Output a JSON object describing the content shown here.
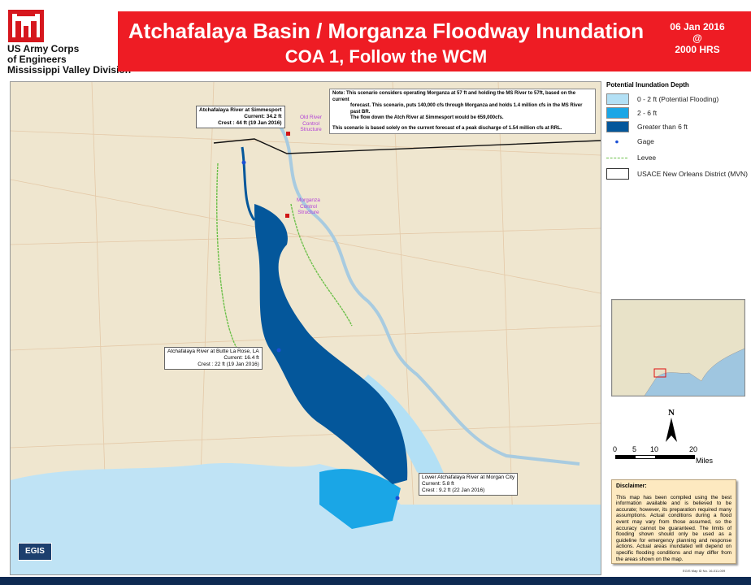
{
  "header": {
    "org_lines": [
      "US Army Corps",
      "of Engineers",
      "Mississippi Valley Division"
    ],
    "title": "Atchafalaya Basin / Morganza Floodway Inundation",
    "subtitle": "COA 1, Follow the WCM",
    "date": "06 Jan 2016",
    "at": "@",
    "time": "2000 HRS",
    "colors": {
      "banner": "#ee1c24",
      "logo": "#d6171e"
    }
  },
  "map": {
    "note_lines": [
      "Note: This scenario considers operating Morganza at 57 ft and holding the MS River to 57ft, based on the current",
      "forecast. This scenario, puts 140,000 cfs through Morganza and holds 1.4 million cfs in the MS River past BR.",
      "The flow down the Atch River at Simmesport would be 659,000cfs.",
      "This  scenario is based solely on the current forecast of a peak discharge of 1.54 million cfs at RRL."
    ],
    "gages": [
      {
        "name": "Atchafalaya River at Simmesport",
        "current": "Current: 34.2 ft",
        "crest": "Crest : 44 ft (19 Jan 2016)"
      },
      {
        "name": "Atchafalaya River at Butte La Rose, LA",
        "current": "Current: 16.4 ft",
        "crest": "Crest : 22 ft (19 Jan 2016)"
      },
      {
        "name": "Lower Atchafalaya River at Morgan City",
        "current": "Current: 5.8 ft",
        "crest": "Crest : 9.2 ft (22 Jan 2016)"
      }
    ],
    "structures": [
      {
        "lines": [
          "Old River",
          "Control",
          "Structure"
        ]
      },
      {
        "lines": [
          "Morganza",
          "Control",
          "Structure"
        ]
      }
    ],
    "logo_text": "EGIS"
  },
  "legend": {
    "title": "Potential Inundation Depth",
    "items": [
      {
        "label": "0 - 2 ft (Potential Flooding)",
        "color": "#b3e0f5"
      },
      {
        "label": "2 - 6 ft",
        "color": "#1aa6e6"
      },
      {
        "label": "Greater than 6 ft",
        "color": "#04579b"
      },
      {
        "label": "Gage",
        "icon": "gage-dot-icon"
      },
      {
        "label": "Levee",
        "icon": "levee-line-icon"
      },
      {
        "label": "USACE New Orleans District (MVN)",
        "icon": "district-outline-icon"
      }
    ]
  },
  "north_label": "N",
  "scale": {
    "ticks": [
      "0",
      "5",
      "10",
      "20"
    ],
    "unit": "Miles"
  },
  "disclaimer": {
    "title": "Disclaimer:",
    "text": "This map has been compiled using the best information available and is believed to be accurate; however, its preparation required many assumptions. Actual conditions during a flood event may vary from those assumed, so the accuracy cannot be guaranteed. The limits of flooding shown should only be used as a guideline for emergency planning and response actions. Actual areas inundated will depend on specific flooding conditions and may differ from the areas shown on the map."
  },
  "map_id": "EGIS Map ID No. 16-011-009"
}
